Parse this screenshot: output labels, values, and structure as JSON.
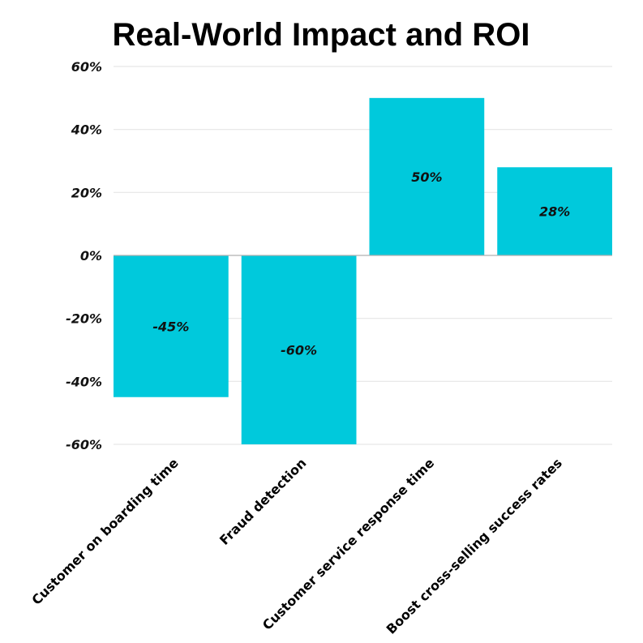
{
  "chart_data": {
    "type": "bar",
    "title": "Real-World Impact and ROI",
    "xlabel": "",
    "ylabel": "",
    "categories": [
      "Customer on boarding time",
      "Fraud detection",
      "Customer service response time",
      "Boost cross-selling success rates"
    ],
    "values": [
      -45,
      -60,
      50,
      28
    ],
    "data_labels": [
      "-45%",
      "-60%",
      "50%",
      "28%"
    ],
    "ylim": [
      -60,
      60
    ],
    "yticks": [
      60,
      40,
      20,
      0,
      -20,
      -40,
      -60
    ],
    "ytick_labels": [
      "60%",
      "40%",
      "20%",
      "0%",
      "-20%",
      "-40%",
      "-60%"
    ],
    "grid": true,
    "legend": "none",
    "bar_color": "#00C9DC"
  }
}
